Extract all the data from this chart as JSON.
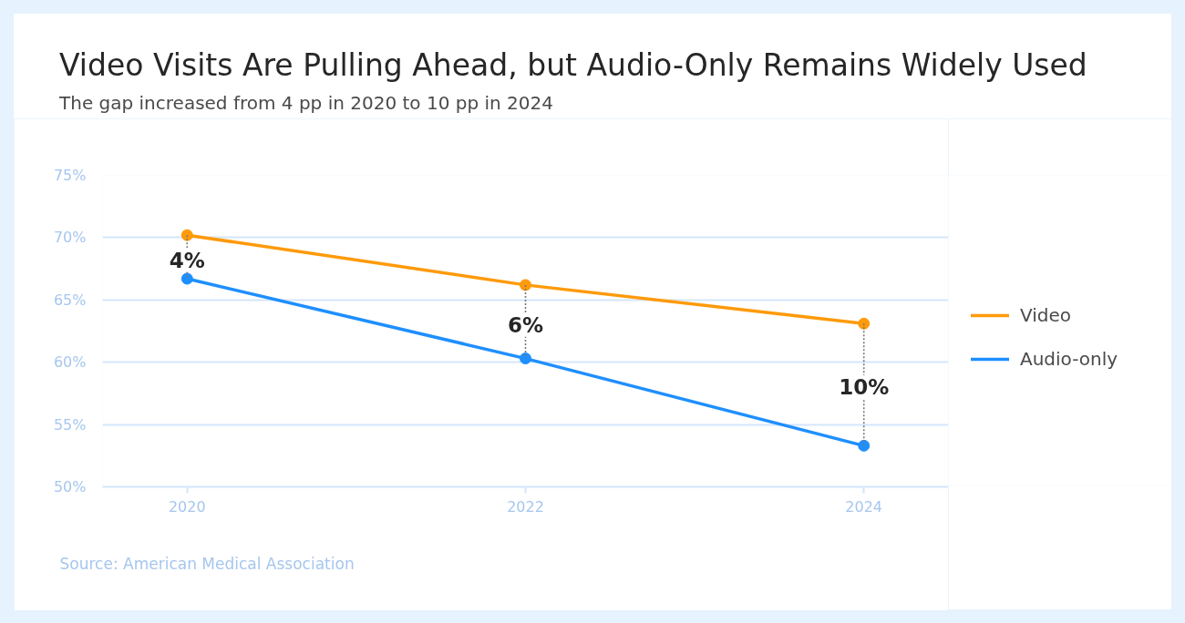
{
  "chart_data": {
    "type": "line",
    "title": "Video Visits Are Pulling Ahead, but Audio-Only Remains Widely Used",
    "subtitle": "The gap increased from 4 pp in 2020 to 10 pp in 2024",
    "x": [
      2020,
      2022,
      2024
    ],
    "xlim": [
      2019.5,
      2024.5
    ],
    "xticks": [
      2020,
      2022,
      2024
    ],
    "series": [
      {
        "name": "Video",
        "color": "#ff9a0a",
        "values": [
          70.2,
          66.2,
          63.1
        ]
      },
      {
        "name": "Audio-only",
        "color": "#1e8fff",
        "values": [
          66.7,
          60.3,
          53.3
        ]
      },
      {
        "type": "line",
        "color": "#777777",
        "x": [
          2020,
          2020
        ],
        "values": [
          70.2,
          66.7
        ],
        "line_style": "dotted",
        "marker": "none"
      },
      {
        "type": "line",
        "color": "#777777",
        "x": [
          2022,
          2022
        ],
        "values": [
          66.2,
          60.3
        ],
        "line_style": "dotted",
        "marker": "none"
      },
      {
        "type": "line",
        "color": "#777777",
        "x": [
          2024,
          2024
        ],
        "values": [
          63.1,
          53.3
        ],
        "line_style": "dotted",
        "marker": "none"
      }
    ],
    "ylim": [
      50,
      75
    ],
    "yticks": [
      {
        "value": 50,
        "label": "50%"
      },
      {
        "value": 55,
        "label": "55%"
      },
      {
        "value": 60,
        "label": "60%"
      },
      {
        "value": 65,
        "label": "65%"
      },
      {
        "value": 70,
        "label": "70%"
      },
      {
        "value": 75,
        "label": "75%"
      }
    ],
    "grid": "y",
    "legend": "right",
    "marker": "circle",
    "line_style": "solid",
    "annotations": [
      {
        "text": "4%",
        "x": 2020,
        "y": 68.2
      },
      {
        "text": "6%",
        "x": 2022,
        "y": 63.0
      },
      {
        "text": "10%",
        "x": 2024,
        "y": 58.0
      },
      "Source: American Medical Association"
    ]
  }
}
